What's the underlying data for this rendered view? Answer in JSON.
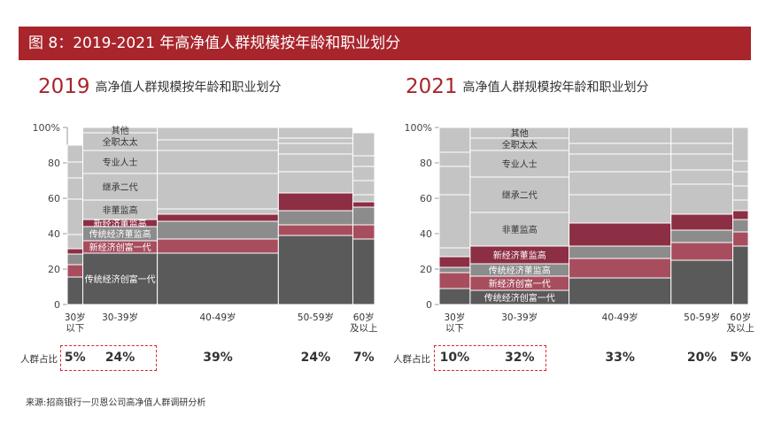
{
  "figure": {
    "title": "图 8：2019-2021 年高净值人群规模按年龄和职业划分",
    "source": "来源:招商银行一贝恩公司高净值人群调研分析"
  },
  "colors": {
    "banner": "#a8252c",
    "accent": "#a8252c",
    "dashed_box": "#d9232b",
    "segments": [
      "#5a5a5a",
      "#a84d5e",
      "#8c8c8c",
      "#8c2e44",
      "#c4c4c4",
      "#c4c4c4",
      "#c4c4c4",
      "#c4c4c4",
      "#c4c4c4"
    ]
  },
  "chart_data": [
    {
      "type": "bar",
      "subtype": "marimekko",
      "year_label": "2019",
      "title": "高净值人群规模按年龄和职业划分",
      "ylim": [
        0,
        100
      ],
      "yticks": [
        "0",
        "20",
        "40",
        "60",
        "80",
        "100%"
      ],
      "categories": [
        "30岁\n以下",
        "30-39岁",
        "40-49岁",
        "50-59岁",
        "60岁\n及以上"
      ],
      "widths": [
        5,
        24,
        39,
        24,
        7
      ],
      "width_labels": [
        "5%",
        "24%",
        "39%",
        "24%",
        "7%"
      ],
      "population_label": "人群占比",
      "series": [
        {
          "name": "传统经济创富一代",
          "values": [
            15.5,
            29,
            29,
            39,
            37
          ]
        },
        {
          "name": "新经济创富一代",
          "values": [
            7,
            7,
            8,
            6,
            8
          ]
        },
        {
          "name": "传统经济董监高",
          "values": [
            6,
            8,
            10,
            8,
            10
          ]
        },
        {
          "name": "新经济董监高",
          "values": [
            3,
            4,
            4,
            10,
            3
          ]
        },
        {
          "name": "非董监高",
          "values": [
            8,
            11,
            3,
            12,
            4
          ]
        },
        {
          "name": "继承二代",
          "values": [
            20,
            15,
            20,
            10,
            8
          ]
        },
        {
          "name": "专业人士",
          "values": [
            12,
            13,
            13,
            6,
            8
          ]
        },
        {
          "name": "全职太太",
          "values": [
            9,
            10,
            6,
            3,
            6
          ]
        },
        {
          "name": "其他",
          "values": [
            9.5,
            3,
            7,
            6,
            13
          ]
        }
      ],
      "segment_labels": [
        "传统经济创富一代",
        "新经济创富一代",
        "传统经济董监高",
        "新经济董监高",
        "非董监高",
        "继承二代",
        "专业人士",
        "全职太太",
        "其他"
      ]
    },
    {
      "type": "bar",
      "subtype": "marimekko",
      "year_label": "2021",
      "title": "高净值人群规模按年龄和职业划分",
      "ylim": [
        0,
        100
      ],
      "yticks": [
        "0",
        "20",
        "40",
        "60",
        "80",
        "100%"
      ],
      "categories": [
        "30岁\n以下",
        "30-39岁",
        "40-49岁",
        "50-59岁",
        "60岁\n及以上"
      ],
      "widths": [
        10,
        32,
        33,
        20,
        5
      ],
      "width_labels": [
        "10%",
        "32%",
        "33%",
        "20%",
        "5%"
      ],
      "population_label": "人群占比",
      "series": [
        {
          "name": "传统经济创富一代",
          "values": [
            9,
            8,
            15,
            25,
            33
          ]
        },
        {
          "name": "新经济创富一代",
          "values": [
            9,
            8,
            11,
            10,
            8
          ]
        },
        {
          "name": "传统经济董监高",
          "values": [
            3,
            7,
            7,
            7,
            7
          ]
        },
        {
          "name": "新经济董监高",
          "values": [
            6,
            10,
            13,
            9,
            5
          ]
        },
        {
          "name": "非董监高",
          "values": [
            5,
            19,
            16,
            17,
            6
          ]
        },
        {
          "name": "继承二代",
          "values": [
            30,
            20,
            13,
            8,
            8
          ]
        },
        {
          "name": "专业人士",
          "values": [
            16,
            15,
            10,
            9,
            8
          ]
        },
        {
          "name": "全职太太",
          "values": [
            8,
            7,
            6,
            6,
            6
          ]
        },
        {
          "name": "其他",
          "values": [
            14,
            6,
            9,
            9,
            19
          ]
        }
      ],
      "segment_labels": [
        "传统经济创富一代",
        "新经济创富一代",
        "传统经济董监高",
        "新经济董监高",
        "非董监高",
        "继承二代",
        "专业人士",
        "全职太太",
        "其他"
      ]
    }
  ]
}
